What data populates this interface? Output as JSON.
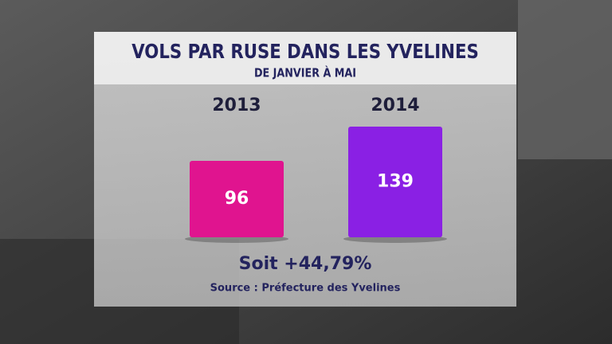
{
  "chart_data": {
    "type": "bar",
    "title": "VOLS PAR RUSE DANS LES YVELINES",
    "subtitle": "DE JANVIER À MAI",
    "categories": [
      "2013",
      "2014"
    ],
    "values": [
      96,
      139
    ],
    "colors": [
      "#e0148f",
      "#8a20e4"
    ],
    "annotation": "Soit +44,79%",
    "source": "Source : Préfecture des Yvelines"
  }
}
